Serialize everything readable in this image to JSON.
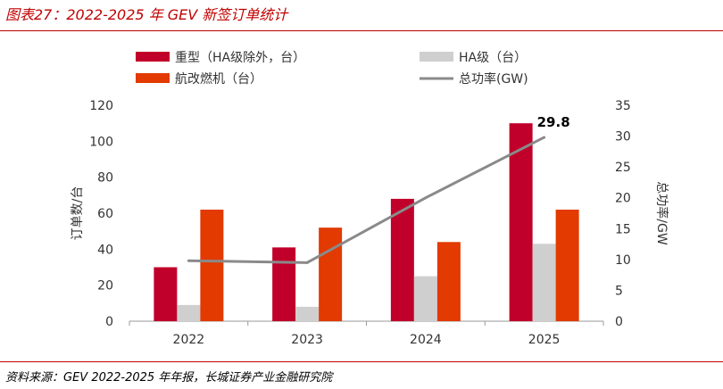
{
  "figure_title": "图表27：2022-2025 年 GEV 新签订单统计",
  "source": "资料来源：GEV 2022-2025 年年报，长城证券产业金融研究院",
  "colors": {
    "rule": "#c00000",
    "heavy": "#c0002a",
    "ha": "#cfcfcf",
    "aero": "#e23a00",
    "power": "#8a8a8a"
  },
  "chart_data": {
    "type": "bar+line",
    "categories": [
      "2022",
      "2023",
      "2024",
      "2025"
    ],
    "series": [
      {
        "name": "重型（HA级除外，台）",
        "kind": "bar",
        "axis": "left",
        "color": "#c0002a",
        "values": [
          30,
          41,
          68,
          110
        ]
      },
      {
        "name": "HA级（台）",
        "kind": "bar",
        "axis": "left",
        "color": "#cfcfcf",
        "values": [
          9,
          8,
          25,
          43
        ]
      },
      {
        "name": "航改燃机（台）",
        "kind": "bar",
        "axis": "left",
        "color": "#e23a00",
        "values": [
          62,
          52,
          44,
          62
        ]
      },
      {
        "name": "总功率(GW)",
        "kind": "line",
        "axis": "right",
        "color": "#8a8a8a",
        "values": [
          9.8,
          9.5,
          20.0,
          29.8
        ]
      }
    ],
    "ylabel_left": "订单数/台",
    "ylabel_right": "总功率/GW",
    "ylim_left": [
      0,
      120
    ],
    "yticks_left": [
      0,
      20,
      40,
      60,
      80,
      100,
      120
    ],
    "ylim_right": [
      0,
      35
    ],
    "yticks_right": [
      0,
      5,
      10,
      15,
      20,
      25,
      30,
      35
    ],
    "annotation": {
      "text": "29.8",
      "series": "总功率(GW)",
      "category": "2025"
    },
    "legend_placement": "top, two columns",
    "grid": false
  }
}
